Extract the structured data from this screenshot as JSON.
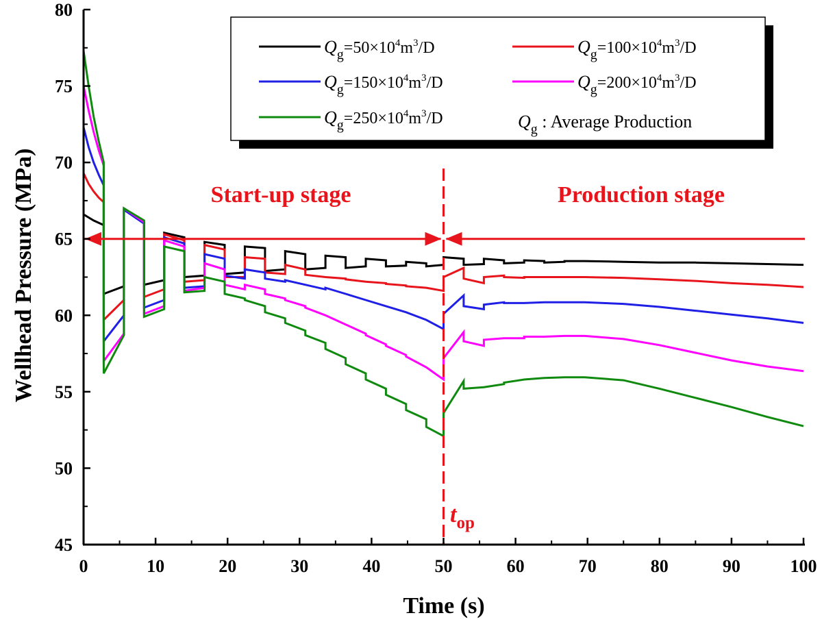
{
  "chart_data": {
    "type": "line",
    "xlabel": "Time (s)",
    "ylabel": "Wellhead Pressure (MPa)",
    "xlim": [
      0,
      100
    ],
    "ylim": [
      45,
      80
    ],
    "xticks": [
      0,
      10,
      20,
      30,
      40,
      50,
      60,
      70,
      80,
      90,
      100
    ],
    "yticks": [
      45,
      50,
      55,
      60,
      65,
      70,
      75,
      80
    ],
    "grid": false,
    "legend_position": "top-right",
    "legend": {
      "entries": [
        {
          "q": "Q",
          "sub": "g",
          "eq": "=50×10",
          "sup": "4",
          "unit": "m",
          "sup2": "3",
          "tail": "/D",
          "color": "#000000"
        },
        {
          "q": "Q",
          "sub": "g",
          "eq": "=100×10",
          "sup": "4",
          "unit": "m",
          "sup2": "3",
          "tail": "/D",
          "color": "#e8141b"
        },
        {
          "q": "Q",
          "sub": "g",
          "eq": "=150×10",
          "sup": "4",
          "unit": "m",
          "sup2": "3",
          "tail": "/D",
          "color": "#1f1fe6"
        },
        {
          "q": "Q",
          "sub": "g",
          "eq": "=200×10",
          "sup": "4",
          "unit": "m",
          "sup2": "3",
          "tail": "/D",
          "color": "#ff00ff"
        },
        {
          "q": "Q",
          "sub": "g",
          "eq": "=250×10",
          "sup": "4",
          "unit": "m",
          "sup2": "3",
          "tail": "/D",
          "color": "#0f8a0f"
        }
      ],
      "note": {
        "q": "Q",
        "sub": "g",
        "text": " : Average Production"
      }
    },
    "annotations": {
      "startup_label": "Start-up stage",
      "production_label": "Production stage",
      "top_t": "t",
      "top_sub": "op",
      "divider_x": 50,
      "arrow_y": 65,
      "annotation_color": "#e8141b"
    },
    "steps": [
      {
        "s": 2.8,
        "e": 5.6
      },
      {
        "s": 5.6,
        "e": 8.4
      },
      {
        "s": 8.4,
        "e": 11.2
      },
      {
        "s": 11.2,
        "e": 14
      },
      {
        "s": 14,
        "e": 16.8
      },
      {
        "s": 16.8,
        "e": 19.6
      },
      {
        "s": 19.6,
        "e": 22.4
      },
      {
        "s": 22.4,
        "e": 25.2
      },
      {
        "s": 25.2,
        "e": 28
      },
      {
        "s": 28,
        "e": 30.8
      },
      {
        "s": 30.8,
        "e": 33.6
      },
      {
        "s": 33.6,
        "e": 36.4
      },
      {
        "s": 36.4,
        "e": 39.2
      },
      {
        "s": 39.2,
        "e": 42
      },
      {
        "s": 42,
        "e": 44.8
      },
      {
        "s": 44.8,
        "e": 47.6
      },
      {
        "s": 47.6,
        "e": 50
      },
      {
        "s": 50,
        "e": 52.8
      },
      {
        "s": 52.8,
        "e": 55.6
      },
      {
        "s": 55.6,
        "e": 58.4
      },
      {
        "s": 58.4,
        "e": 61.2
      },
      {
        "s": 61.2,
        "e": 64
      },
      {
        "s": 64,
        "e": 66.8
      },
      {
        "s": 66.8,
        "e": 69.6
      }
    ],
    "series": [
      {
        "name": "Qg=50×10^4 m^3/D",
        "color": "#000000",
        "first": [
          [
            0,
            66.6
          ],
          [
            0.7,
            66.4
          ],
          [
            1.4,
            66.2
          ],
          [
            2.1,
            66.05
          ],
          [
            2.8,
            65.9
          ]
        ],
        "seg_start": [
          61.4,
          66.9,
          62.0,
          65.4,
          62.5,
          64.8,
          62.7,
          64.5,
          62.9,
          64.2,
          63.0,
          63.9,
          63.1,
          63.7,
          63.2,
          63.5,
          63.2,
          63.8,
          63.3,
          63.7,
          63.4,
          63.6,
          63.45,
          63.55
        ],
        "seg_end": [
          61.9,
          66.1,
          62.3,
          65.1,
          62.6,
          64.6,
          62.8,
          64.4,
          63.0,
          64.0,
          63.1,
          63.8,
          63.2,
          63.6,
          63.25,
          63.4,
          63.3,
          63.7,
          63.35,
          63.6,
          63.45,
          63.55,
          63.5,
          63.55
        ],
        "tail": [
          [
            69.6,
            63.55
          ],
          [
            75,
            63.5
          ],
          [
            80,
            63.45
          ],
          [
            85,
            63.45
          ],
          [
            90,
            63.4
          ],
          [
            95,
            63.35
          ],
          [
            100,
            63.3
          ]
        ]
      },
      {
        "name": "Qg=100×10^4 m^3/D",
        "color": "#e8141b",
        "first": [
          [
            0,
            69.3
          ],
          [
            0.7,
            68.6
          ],
          [
            1.4,
            68.1
          ],
          [
            2.1,
            67.7
          ],
          [
            2.8,
            67.4
          ]
        ],
        "seg_start": [
          59.7,
          66.9,
          61.2,
          65.3,
          62.2,
          64.6,
          62.5,
          63.8,
          62.8,
          63.3,
          62.65,
          62.5,
          62.35,
          62.2,
          62.05,
          61.9,
          61.8,
          62.5,
          62.4,
          62.5,
          62.5,
          62.5,
          62.5,
          62.5
        ],
        "seg_end": [
          61.0,
          66.1,
          61.7,
          64.9,
          62.3,
          64.3,
          62.5,
          63.7,
          62.7,
          63.0,
          62.5,
          62.4,
          62.2,
          62.1,
          61.95,
          61.8,
          61.6,
          63.1,
          62.1,
          62.6,
          62.45,
          62.5,
          62.5,
          62.5
        ],
        "tail": [
          [
            69.6,
            62.5
          ],
          [
            75,
            62.45
          ],
          [
            80,
            62.35
          ],
          [
            85,
            62.25
          ],
          [
            90,
            62.1
          ],
          [
            95,
            62.0
          ],
          [
            100,
            61.85
          ]
        ]
      },
      {
        "name": "Qg=150×10^4 m^3/D",
        "color": "#1f1fe6",
        "first": [
          [
            0,
            72.3
          ],
          [
            0.7,
            71.0
          ],
          [
            1.4,
            70.0
          ],
          [
            2.1,
            69.2
          ],
          [
            2.8,
            68.5
          ]
        ],
        "seg_start": [
          58.3,
          66.9,
          60.5,
          65.1,
          61.8,
          64.0,
          62.6,
          63.0,
          62.4,
          62.3,
          62.0,
          61.8,
          61.4,
          61.0,
          60.6,
          60.2,
          59.7,
          60.1,
          60.6,
          60.7,
          60.8,
          60.8,
          60.85,
          60.85
        ],
        "seg_end": [
          60.0,
          66.0,
          61.0,
          64.7,
          61.9,
          63.7,
          62.4,
          62.8,
          62.2,
          62.0,
          61.7,
          61.4,
          61.0,
          60.6,
          60.2,
          59.7,
          59.1,
          61.3,
          60.4,
          60.85,
          60.8,
          60.85,
          60.85,
          60.85
        ],
        "tail": [
          [
            69.6,
            60.85
          ],
          [
            75,
            60.75
          ],
          [
            80,
            60.55
          ],
          [
            85,
            60.3
          ],
          [
            90,
            60.05
          ],
          [
            95,
            59.8
          ],
          [
            100,
            59.5
          ]
        ]
      },
      {
        "name": "Qg=200×10^4 m^3/D",
        "color": "#ff00ff",
        "first": [
          [
            0,
            75.0
          ],
          [
            0.7,
            73.4
          ],
          [
            1.4,
            72.0
          ],
          [
            2.1,
            70.8
          ],
          [
            2.8,
            69.8
          ]
        ],
        "seg_start": [
          57.0,
          67.0,
          60.1,
          64.9,
          61.6,
          63.4,
          62.0,
          62.0,
          61.4,
          61.0,
          60.5,
          60.0,
          59.4,
          58.7,
          58.0,
          57.3,
          56.6,
          57.2,
          58.3,
          58.4,
          58.5,
          58.6,
          58.6,
          58.65
        ],
        "seg_end": [
          58.8,
          66.1,
          60.6,
          64.5,
          61.8,
          63.0,
          61.7,
          61.7,
          61.1,
          60.6,
          60.0,
          59.4,
          58.8,
          58.1,
          57.4,
          56.6,
          55.8,
          58.9,
          58.0,
          58.5,
          58.5,
          58.6,
          58.65,
          58.65
        ],
        "tail": [
          [
            69.6,
            58.65
          ],
          [
            75,
            58.45
          ],
          [
            80,
            58.05
          ],
          [
            85,
            57.55
          ],
          [
            90,
            57.05
          ],
          [
            95,
            56.65
          ],
          [
            100,
            56.35
          ]
        ]
      },
      {
        "name": "Qg=250×10^4 m^3/D",
        "color": "#0f8a0f",
        "first": [
          [
            0,
            77.3
          ],
          [
            0.7,
            75.0
          ],
          [
            1.4,
            73.0
          ],
          [
            2.1,
            71.4
          ],
          [
            2.8,
            70.0
          ]
        ],
        "seg_start": [
          56.2,
          67.0,
          59.9,
          64.5,
          61.5,
          62.5,
          61.4,
          61.0,
          60.2,
          59.5,
          58.7,
          57.8,
          56.8,
          55.8,
          54.8,
          53.8,
          52.7,
          53.6,
          55.2,
          55.3,
          55.6,
          55.8,
          55.9,
          55.95
        ],
        "seg_end": [
          58.7,
          66.2,
          60.4,
          64.2,
          61.6,
          62.2,
          61.1,
          60.6,
          59.8,
          59.0,
          58.2,
          57.2,
          56.2,
          55.2,
          54.2,
          53.2,
          52.1,
          55.7,
          55.3,
          55.5,
          55.8,
          55.9,
          55.95,
          55.95
        ],
        "tail": [
          [
            69.6,
            55.95
          ],
          [
            75,
            55.75
          ],
          [
            80,
            55.2
          ],
          [
            85,
            54.6
          ],
          [
            90,
            54.0
          ],
          [
            95,
            53.35
          ],
          [
            100,
            52.75
          ]
        ]
      }
    ]
  }
}
